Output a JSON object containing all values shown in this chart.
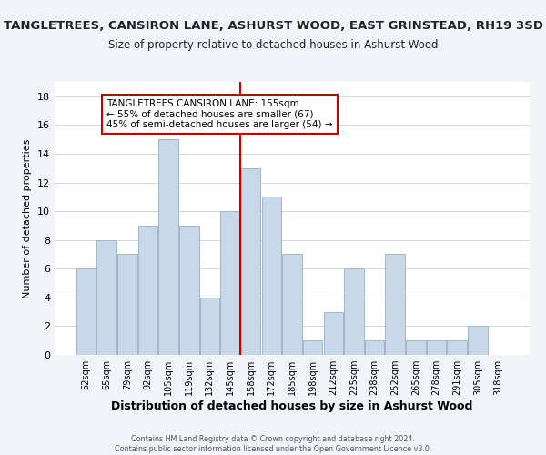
{
  "title": "TANGLETREES, CANSIRON LANE, ASHURST WOOD, EAST GRINSTEAD, RH19 3SD",
  "subtitle": "Size of property relative to detached houses in Ashurst Wood",
  "xlabel": "Distribution of detached houses by size in Ashurst Wood",
  "ylabel": "Number of detached properties",
  "bar_labels": [
    "52sqm",
    "65sqm",
    "79sqm",
    "92sqm",
    "105sqm",
    "119sqm",
    "132sqm",
    "145sqm",
    "158sqm",
    "172sqm",
    "185sqm",
    "198sqm",
    "212sqm",
    "225sqm",
    "238sqm",
    "252sqm",
    "265sqm",
    "278sqm",
    "291sqm",
    "305sqm",
    "318sqm"
  ],
  "bar_values": [
    6,
    8,
    7,
    9,
    15,
    9,
    4,
    10,
    13,
    11,
    7,
    1,
    3,
    6,
    1,
    7,
    1,
    1,
    1,
    2,
    0
  ],
  "bar_color": "#c8d8e8",
  "bar_edge_color": "#a0b8cc",
  "highlight_line_index": 8,
  "highlight_line_color": "#cc0000",
  "annotation_title": "TANGLETREES CANSIRON LANE: 155sqm",
  "annotation_line1": "← 55% of detached houses are smaller (67)",
  "annotation_line2": "45% of semi-detached houses are larger (54) →",
  "ylim": [
    0,
    19
  ],
  "yticks": [
    0,
    2,
    4,
    6,
    8,
    10,
    12,
    14,
    16,
    18
  ],
  "footer1": "Contains HM Land Registry data © Crown copyright and database right 2024.",
  "footer2": "Contains public sector information licensed under the Open Government Licence v3.0.",
  "bg_color": "#f0f4f8",
  "plot_bg_color": "#ffffff",
  "title_fontsize": 9.5,
  "subtitle_fontsize": 8.5,
  "xlabel_fontsize": 9,
  "ylabel_fontsize": 8
}
